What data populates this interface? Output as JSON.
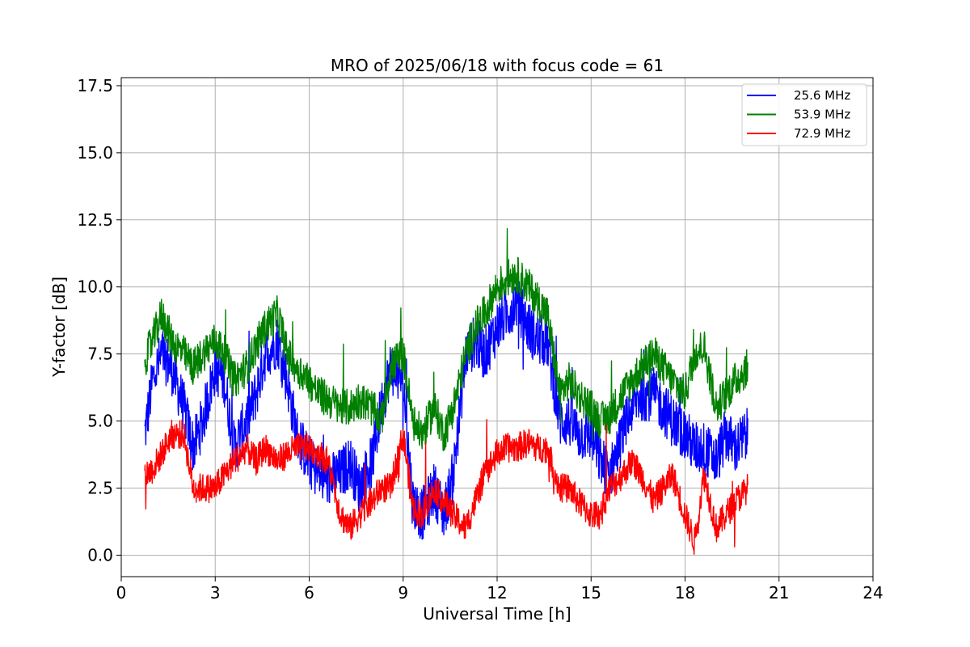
{
  "chart_data": {
    "type": "line",
    "title": "MRO of 2025/06/18 with focus code = 61",
    "xlabel": "Universal Time [h]",
    "ylabel": "Y-factor [dB]",
    "xlim": [
      0,
      24
    ],
    "ylim": [
      -0.8,
      17.8
    ],
    "xticks": [
      0,
      3,
      6,
      9,
      12,
      15,
      18,
      21,
      24
    ],
    "yticks": [
      0.0,
      2.5,
      5.0,
      7.5,
      10.0,
      12.5,
      15.0,
      17.5
    ],
    "xtick_labels": [
      "0",
      "3",
      "6",
      "9",
      "12",
      "15",
      "18",
      "21",
      "24"
    ],
    "ytick_labels": [
      "0.0",
      "2.5",
      "5.0",
      "7.5",
      "10.0",
      "12.5",
      "15.0",
      "17.5"
    ],
    "grid": true,
    "legend_position": "top-right",
    "series": [
      {
        "name": "25.6 MHz",
        "color": "#0000ff",
        "x": [
          0.75,
          1.0,
          1.3,
          1.6,
          2.0,
          2.3,
          2.6,
          3.0,
          3.3,
          3.6,
          4.0,
          4.3,
          4.6,
          5.0,
          5.3,
          5.6,
          6.0,
          6.3,
          6.6,
          7.0,
          7.3,
          7.6,
          8.0,
          8.3,
          8.6,
          9.0,
          9.3,
          9.6,
          10.0,
          10.3,
          10.6,
          11.0,
          11.3,
          11.6,
          12.0,
          12.3,
          12.6,
          13.0,
          13.3,
          13.6,
          14.0,
          14.3,
          14.6,
          15.0,
          15.3,
          15.6,
          16.0,
          16.3,
          16.6,
          17.0,
          17.3,
          17.6,
          18.0,
          18.3,
          18.6,
          19.0,
          19.3,
          19.6,
          20.0
        ],
        "y": [
          4.5,
          6.5,
          7.5,
          7.0,
          5.5,
          4.0,
          5.0,
          7.0,
          6.5,
          4.0,
          5.0,
          6.0,
          7.5,
          8.0,
          6.5,
          4.5,
          3.5,
          3.0,
          2.8,
          3.0,
          3.5,
          2.5,
          3.5,
          5.5,
          7.0,
          6.5,
          2.0,
          1.5,
          2.5,
          1.5,
          3.0,
          7.5,
          8.0,
          7.5,
          8.5,
          9.0,
          9.5,
          8.5,
          8.0,
          8.0,
          5.0,
          5.0,
          4.5,
          4.5,
          3.5,
          3.0,
          4.5,
          5.5,
          6.0,
          6.0,
          5.5,
          5.0,
          4.5,
          4.0,
          4.0,
          3.5,
          4.5,
          4.0,
          4.5
        ],
        "noise": 1.0
      },
      {
        "name": "53.9 MHz",
        "color": "#008000",
        "x": [
          0.75,
          1.0,
          1.3,
          1.6,
          2.0,
          2.3,
          2.6,
          3.0,
          3.3,
          3.6,
          4.0,
          4.3,
          4.6,
          5.0,
          5.3,
          5.6,
          6.0,
          6.3,
          6.6,
          7.0,
          7.3,
          7.6,
          8.0,
          8.3,
          8.6,
          9.0,
          9.3,
          9.6,
          10.0,
          10.3,
          10.6,
          11.0,
          11.3,
          11.6,
          12.0,
          12.3,
          12.6,
          13.0,
          13.3,
          13.6,
          14.0,
          14.3,
          14.6,
          15.0,
          15.3,
          15.6,
          16.0,
          16.3,
          16.6,
          17.0,
          17.3,
          17.6,
          18.0,
          18.3,
          18.6,
          19.0,
          19.3,
          19.6,
          20.0
        ],
        "y": [
          7.3,
          8.0,
          9.0,
          8.0,
          7.5,
          7.0,
          7.5,
          8.0,
          7.5,
          6.5,
          7.0,
          7.8,
          8.5,
          9.0,
          7.5,
          7.0,
          6.5,
          6.0,
          5.8,
          5.5,
          5.5,
          5.8,
          5.5,
          5.0,
          7.0,
          7.5,
          5.0,
          4.5,
          5.5,
          4.5,
          5.5,
          7.5,
          8.5,
          9.0,
          10.0,
          10.3,
          10.5,
          10.0,
          9.5,
          9.0,
          6.0,
          6.5,
          6.0,
          5.5,
          5.0,
          5.2,
          6.0,
          6.5,
          7.0,
          7.5,
          7.0,
          6.5,
          6.0,
          7.5,
          7.8,
          5.5,
          6.0,
          6.5,
          7.0
        ],
        "noise": 0.7
      },
      {
        "name": "72.9 MHz",
        "color": "#ff0000",
        "x": [
          0.75,
          1.0,
          1.3,
          1.6,
          2.0,
          2.3,
          2.6,
          3.0,
          3.3,
          3.6,
          4.0,
          4.3,
          4.6,
          5.0,
          5.3,
          5.6,
          6.0,
          6.3,
          6.6,
          7.0,
          7.3,
          7.6,
          8.0,
          8.3,
          8.6,
          9.0,
          9.3,
          9.6,
          10.0,
          10.3,
          10.6,
          11.0,
          11.3,
          11.6,
          12.0,
          12.3,
          12.6,
          13.0,
          13.3,
          13.6,
          14.0,
          14.3,
          14.6,
          15.0,
          15.3,
          15.6,
          16.0,
          16.3,
          16.6,
          17.0,
          17.3,
          17.6,
          18.0,
          18.3,
          18.6,
          19.0,
          19.3,
          19.6,
          20.0
        ],
        "y": [
          3.0,
          3.2,
          3.8,
          4.5,
          4.5,
          2.5,
          2.5,
          2.5,
          3.0,
          3.5,
          4.0,
          3.5,
          4.0,
          3.5,
          3.8,
          4.0,
          4.0,
          3.8,
          3.5,
          1.5,
          1.0,
          1.5,
          2.0,
          2.5,
          2.5,
          4.5,
          1.8,
          1.5,
          2.5,
          2.0,
          1.5,
          1.0,
          2.0,
          3.0,
          3.8,
          4.0,
          4.0,
          4.2,
          4.0,
          4.0,
          2.5,
          2.5,
          2.0,
          1.5,
          1.5,
          2.5,
          3.0,
          3.5,
          3.0,
          2.0,
          2.5,
          3.0,
          1.5,
          0.5,
          3.0,
          1.0,
          1.5,
          2.0,
          2.5
        ],
        "noise": 0.55
      }
    ]
  }
}
